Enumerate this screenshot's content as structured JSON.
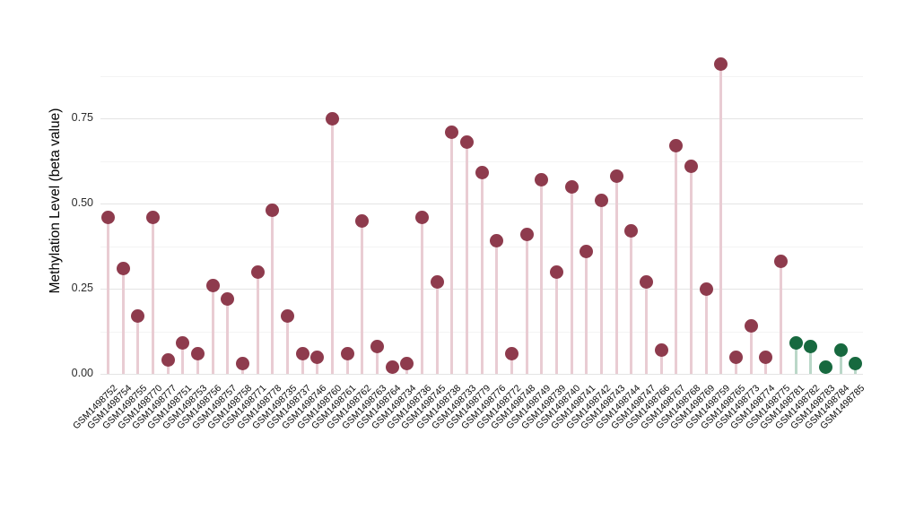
{
  "chart_data": {
    "type": "lollipop",
    "title": "",
    "xlabel": "",
    "ylabel": "Methylation Level (beta value)",
    "ylim": [
      0,
      1.02
    ],
    "yticks": [
      0.0,
      0.25,
      0.5,
      0.75
    ],
    "ytick_labels": [
      "0.00",
      "0.25",
      "0.50",
      "0.75"
    ],
    "yticks_minor": [
      0.125,
      0.375,
      0.625,
      0.875
    ],
    "grid": "horizontal major and minor, light gray on white",
    "legend": "none",
    "series": [
      {
        "name": "group-maroon",
        "dot_color": "#8e3b4d",
        "stem_color": "#e9ccd3"
      },
      {
        "name": "group-green",
        "dot_color": "#17693f",
        "stem_color": "#bad7c8"
      }
    ],
    "points": [
      {
        "label": "GSM1498752",
        "value": 0.46,
        "group": 0
      },
      {
        "label": "GSM1498754",
        "value": 0.31,
        "group": 0
      },
      {
        "label": "GSM1498755",
        "value": 0.17,
        "group": 0
      },
      {
        "label": "GSM1498770",
        "value": 0.46,
        "group": 0
      },
      {
        "label": "GSM1498777",
        "value": 0.04,
        "group": 0
      },
      {
        "label": "GSM1498751",
        "value": 0.09,
        "group": 0
      },
      {
        "label": "GSM1498753",
        "value": 0.06,
        "group": 0
      },
      {
        "label": "GSM1498756",
        "value": 0.26,
        "group": 0
      },
      {
        "label": "GSM1498757",
        "value": 0.22,
        "group": 0
      },
      {
        "label": "GSM1498758",
        "value": 0.03,
        "group": 0
      },
      {
        "label": "GSM1498771",
        "value": 0.3,
        "group": 0
      },
      {
        "label": "GSM1498778",
        "value": 0.48,
        "group": 0
      },
      {
        "label": "GSM1498735",
        "value": 0.17,
        "group": 0
      },
      {
        "label": "GSM1498737",
        "value": 0.06,
        "group": 0
      },
      {
        "label": "GSM1498746",
        "value": 0.05,
        "group": 0
      },
      {
        "label": "GSM1498760",
        "value": 0.75,
        "group": 0
      },
      {
        "label": "GSM1498761",
        "value": 0.06,
        "group": 0
      },
      {
        "label": "GSM1498762",
        "value": 0.45,
        "group": 0
      },
      {
        "label": "GSM1498763",
        "value": 0.08,
        "group": 0
      },
      {
        "label": "GSM1498764",
        "value": 0.02,
        "group": 0
      },
      {
        "label": "GSM1498734",
        "value": 0.03,
        "group": 0
      },
      {
        "label": "GSM1498736",
        "value": 0.46,
        "group": 0
      },
      {
        "label": "GSM1498745",
        "value": 0.27,
        "group": 0
      },
      {
        "label": "GSM1498738",
        "value": 0.71,
        "group": 0
      },
      {
        "label": "GSM1498733",
        "value": 0.68,
        "group": 0
      },
      {
        "label": "GSM1498779",
        "value": 0.59,
        "group": 0
      },
      {
        "label": "GSM1498776",
        "value": 0.39,
        "group": 0
      },
      {
        "label": "GSM1498772",
        "value": 0.06,
        "group": 0
      },
      {
        "label": "GSM1498748",
        "value": 0.41,
        "group": 0
      },
      {
        "label": "GSM1498749",
        "value": 0.57,
        "group": 0
      },
      {
        "label": "GSM1498739",
        "value": 0.3,
        "group": 0
      },
      {
        "label": "GSM1498740",
        "value": 0.55,
        "group": 0
      },
      {
        "label": "GSM1498741",
        "value": 0.36,
        "group": 0
      },
      {
        "label": "GSM1498742",
        "value": 0.51,
        "group": 0
      },
      {
        "label": "GSM1498743",
        "value": 0.58,
        "group": 0
      },
      {
        "label": "GSM1498744",
        "value": 0.42,
        "group": 0
      },
      {
        "label": "GSM1498747",
        "value": 0.27,
        "group": 0
      },
      {
        "label": "GSM1498766",
        "value": 0.07,
        "group": 0
      },
      {
        "label": "GSM1498767",
        "value": 0.67,
        "group": 0
      },
      {
        "label": "GSM1498768",
        "value": 0.61,
        "group": 0
      },
      {
        "label": "GSM1498769",
        "value": 0.25,
        "group": 0
      },
      {
        "label": "GSM1498759",
        "value": 0.91,
        "group": 0
      },
      {
        "label": "GSM1498765",
        "value": 0.05,
        "group": 0
      },
      {
        "label": "GSM1498773",
        "value": 0.14,
        "group": 0
      },
      {
        "label": "GSM1498774",
        "value": 0.05,
        "group": 0
      },
      {
        "label": "GSM1498775",
        "value": 0.33,
        "group": 0
      },
      {
        "label": "GSM1498781",
        "value": 0.09,
        "group": 1
      },
      {
        "label": "GSM1498782",
        "value": 0.08,
        "group": 1
      },
      {
        "label": "GSM1498783",
        "value": 0.02,
        "group": 1
      },
      {
        "label": "GSM1498784",
        "value": 0.07,
        "group": 1
      },
      {
        "label": "GSM1498785",
        "value": 0.03,
        "group": 1
      }
    ]
  }
}
